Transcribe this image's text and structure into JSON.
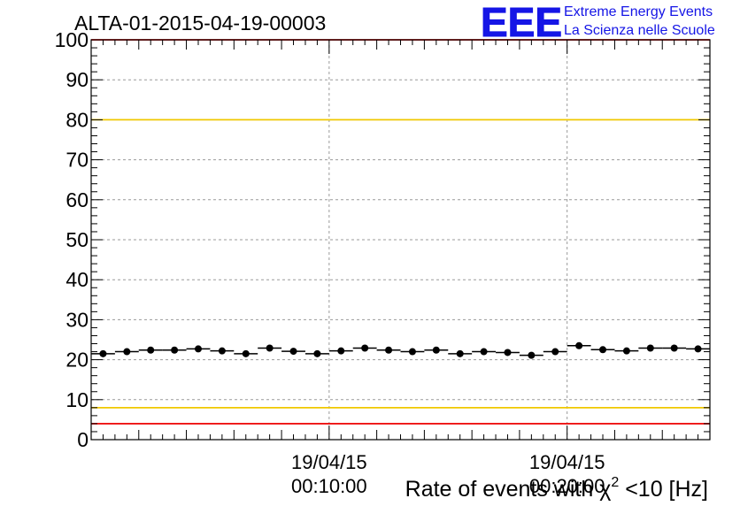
{
  "chart_data": {
    "type": "scatter",
    "title": "ALTA-01-2015-04-19-00003",
    "xlabel_prefix": "Rate of events with χ",
    "xlabel_sup": "2",
    "xlabel_suffix": " <10 [Hz]",
    "ylabel": "",
    "ylim": [
      0,
      100
    ],
    "xlim_minutes": [
      0,
      26
    ],
    "y_ticks": [
      "0",
      "10",
      "20",
      "30",
      "40",
      "50",
      "60",
      "70",
      "80",
      "90",
      "100"
    ],
    "x_ticks": [
      {
        "minute": 10,
        "date": "19/04/15",
        "time": "00:10:00"
      },
      {
        "minute": 20,
        "date": "19/04/15",
        "time": "00:20:00"
      }
    ],
    "grid": true,
    "thresholds": [
      {
        "name": "upper-red",
        "value": 100,
        "color": "#ee1111"
      },
      {
        "name": "upper-yellow",
        "value": 80,
        "color": "#f0c800"
      },
      {
        "name": "lower-yellow",
        "value": 8,
        "color": "#f0c800"
      },
      {
        "name": "lower-red",
        "value": 4,
        "color": "#ee1111"
      }
    ],
    "series": [
      {
        "x_minutes": [
          0.5,
          1.5,
          2.5,
          3.5,
          4.5,
          5.5,
          6.5,
          7.5,
          8.5,
          9.5,
          10.5,
          11.5,
          12.5,
          13.5,
          14.5,
          15.5,
          16.5,
          17.5,
          18.5,
          19.5,
          20.5,
          21.5,
          22.5,
          23.5,
          24.5,
          25.5
        ],
        "values": [
          21.5,
          22.0,
          22.4,
          22.4,
          22.7,
          22.2,
          21.5,
          22.9,
          22.1,
          21.5,
          22.2,
          22.9,
          22.4,
          22.0,
          22.4,
          21.5,
          22.0,
          21.8,
          21.1,
          22.0,
          23.5,
          22.5,
          22.2,
          22.9,
          22.9,
          22.7
        ],
        "x_err_minutes": 0.5,
        "color": "#000000"
      }
    ]
  },
  "logo": {
    "mark": "EEE",
    "line1": "Extreme Energy Events",
    "line2": "La Scienza nelle Scuole",
    "color": "#1515e6"
  }
}
